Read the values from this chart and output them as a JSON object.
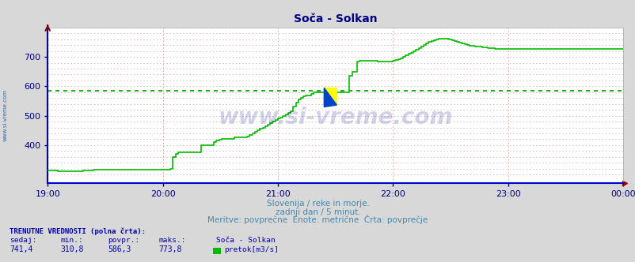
{
  "title": "Soča - Solkan",
  "title_color": "#000080",
  "title_fontsize": 10,
  "bg_color": "#d8d8d8",
  "plot_bg_color": "#ffffff",
  "line_color": "#00bb00",
  "avg_line_color": "#009900",
  "avg_value": 586.3,
  "ylim": [
    270,
    800
  ],
  "yticks": [
    400,
    500,
    600,
    700
  ],
  "grid_color": "#cc9999",
  "grid_color_v": "#cc9999",
  "axis_bottom_color": "#0000cc",
  "axis_left_color": "#0000cc",
  "tick_color": "#000080",
  "watermark": "www.si-vreme.com",
  "watermark_color": "#000080",
  "watermark_alpha": 0.18,
  "left_label": "www.si-vreme.com",
  "left_label_color": "#3366aa",
  "subtitle1": "Slovenija / reke in morje.",
  "subtitle2": "zadnji dan / 5 minut.",
  "subtitle3": "Meritve: povprečne  Enote: metrične  Črta: povprečje",
  "subtitle_color": "#4488aa",
  "footer_label_color": "#0000aa",
  "sedaj": "741,4",
  "min_val": "310,8",
  "povpr": "586,3",
  "maks": "773,8",
  "station": "Soča - Solkan",
  "unit": "pretok[m3/s]",
  "xticklabels": [
    "19:00",
    "20:00",
    "21:00",
    "22:00",
    "23:00",
    "00:00"
  ],
  "xtick_positions": [
    0.0,
    0.2,
    0.4,
    0.6,
    0.8,
    1.0
  ],
  "data_y": [
    315,
    315,
    314,
    313,
    312,
    311,
    311,
    310,
    311,
    311,
    311,
    311,
    312,
    312,
    313,
    314,
    315,
    315,
    316,
    316,
    316,
    316,
    316,
    316,
    316,
    316,
    316,
    316,
    316,
    316,
    316,
    316,
    316,
    316,
    316,
    316,
    316,
    316,
    316,
    316,
    316,
    316,
    316,
    316,
    316,
    316,
    316,
    316,
    320,
    360,
    370,
    375,
    375,
    375,
    375,
    375,
    375,
    375,
    375,
    375,
    400,
    400,
    400,
    400,
    400,
    410,
    415,
    418,
    420,
    420,
    420,
    420,
    420,
    428,
    428,
    428,
    428,
    428,
    430,
    435,
    440,
    445,
    450,
    455,
    460,
    465,
    470,
    475,
    480,
    485,
    490,
    495,
    500,
    505,
    510,
    515,
    530,
    545,
    555,
    560,
    565,
    568,
    570,
    575,
    580,
    580,
    580,
    580,
    580,
    580,
    580,
    580,
    580,
    580,
    580,
    580,
    580,
    580,
    635,
    650,
    650,
    685,
    688,
    688,
    688,
    688,
    688,
    688,
    688,
    685,
    685,
    685,
    685,
    685,
    685,
    688,
    690,
    692,
    695,
    700,
    705,
    710,
    715,
    720,
    725,
    730,
    735,
    740,
    745,
    750,
    755,
    758,
    760,
    762,
    763,
    763,
    763,
    760,
    758,
    755,
    752,
    748,
    745,
    742,
    740,
    738,
    737,
    736,
    735,
    734,
    733,
    732,
    731,
    730,
    729,
    728,
    728,
    728,
    728,
    728,
    728,
    728,
    728,
    728,
    728,
    728,
    728,
    728,
    728,
    728,
    728,
    728,
    728,
    728,
    728,
    728,
    728,
    728,
    728,
    728,
    728,
    728,
    728,
    728,
    728,
    728,
    728,
    728,
    728,
    728,
    728,
    728,
    728,
    728,
    728,
    728,
    728,
    728,
    728,
    728,
    728,
    728,
    728,
    728,
    728,
    728
  ]
}
